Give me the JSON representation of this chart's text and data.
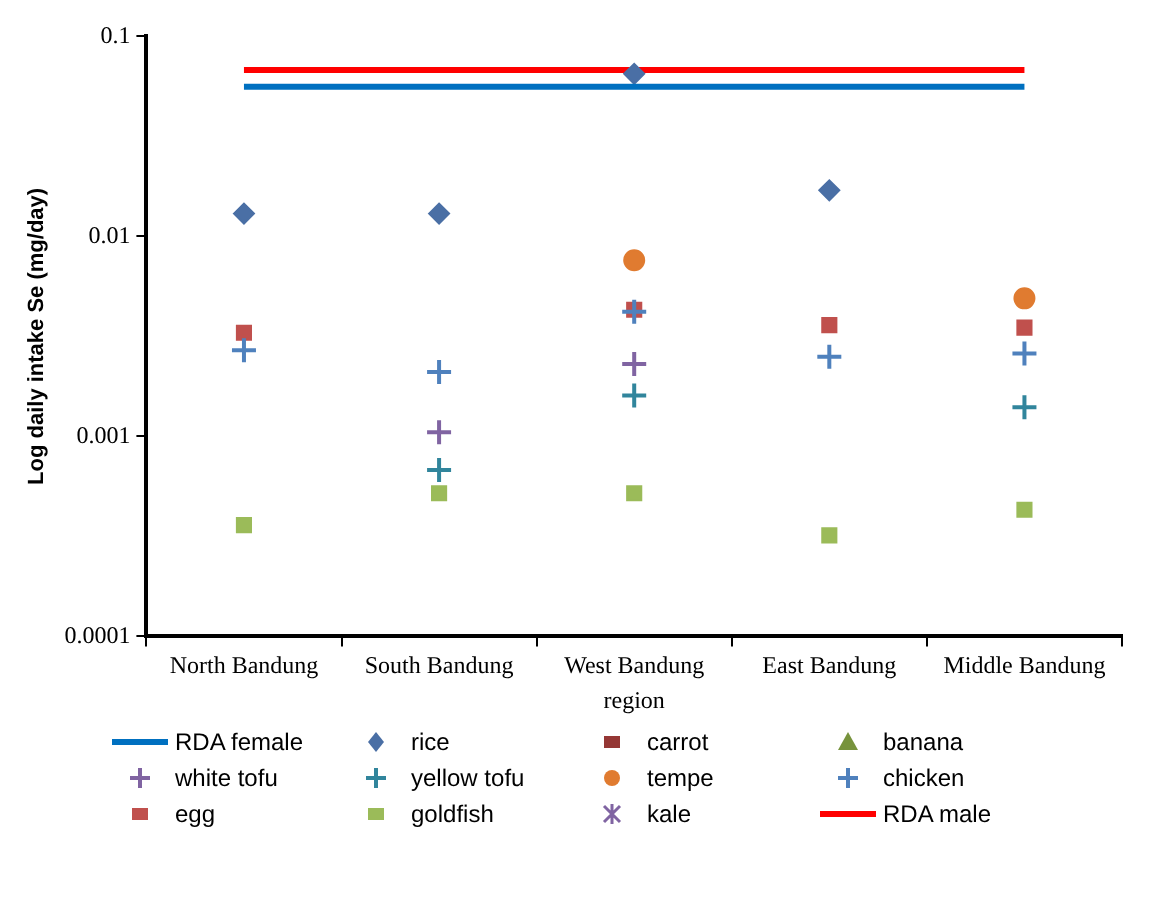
{
  "chart_data": {
    "type": "scatter",
    "xlabel": "region",
    "ylabel": "Log daily intake Se (mg/day)",
    "categories": [
      "North Bandung",
      "South Bandung",
      "West Bandung",
      "East Bandung",
      "Middle Bandung"
    ],
    "log": "y",
    "ylim": [
      0.0001,
      0.1
    ],
    "yticks": [
      0.0001,
      0.001,
      0.01,
      0.1
    ],
    "grid": false,
    "legend": "bottom",
    "series": [
      {
        "name": "RDA female",
        "type": "line",
        "color": "#0070c0",
        "marker": "none",
        "values": [
          0.056,
          0.056,
          0.056,
          0.056,
          0.056
        ]
      },
      {
        "name": "rice",
        "color": "#4a6fa5",
        "marker": "diamond",
        "values": [
          0.013,
          0.013,
          0.065,
          0.017,
          null
        ]
      },
      {
        "name": "carrot",
        "color": "#953735",
        "marker": "square",
        "values": [
          null,
          null,
          null,
          null,
          null
        ]
      },
      {
        "name": "banana",
        "color": "#77933c",
        "marker": "triangle",
        "values": [
          null,
          null,
          null,
          null,
          null
        ]
      },
      {
        "name": "white tofu",
        "color": "#8064a2",
        "marker": "cross",
        "values": [
          null,
          0.00105,
          0.0023,
          null,
          null
        ]
      },
      {
        "name": "yellow tofu",
        "color": "#31859c",
        "marker": "cross",
        "values": [
          null,
          0.00068,
          0.0016,
          null,
          0.0014
        ]
      },
      {
        "name": "tempe",
        "color": "#e07b30",
        "marker": "circle",
        "values": [
          null,
          null,
          0.0076,
          null,
          0.0049
        ]
      },
      {
        "name": "chicken",
        "color": "#4f81bd",
        "marker": "cross",
        "values": [
          0.0027,
          0.0021,
          0.0042,
          0.0025,
          0.0026
        ]
      },
      {
        "name": "egg",
        "color": "#c0504d",
        "marker": "square",
        "values": [
          0.0033,
          null,
          0.0043,
          0.0036,
          0.0035
        ]
      },
      {
        "name": "goldfish",
        "color": "#9bbb59",
        "marker": "square",
        "values": [
          0.00036,
          0.00052,
          0.00052,
          0.00032,
          0.00043
        ]
      },
      {
        "name": "kale",
        "color": "#8064a2",
        "marker": "star",
        "values": [
          null,
          null,
          null,
          null,
          null
        ]
      },
      {
        "name": "RDA male",
        "type": "line",
        "color": "#ff0000",
        "marker": "none",
        "values": [
          0.068,
          0.068,
          0.068,
          0.068,
          0.068
        ]
      }
    ]
  }
}
